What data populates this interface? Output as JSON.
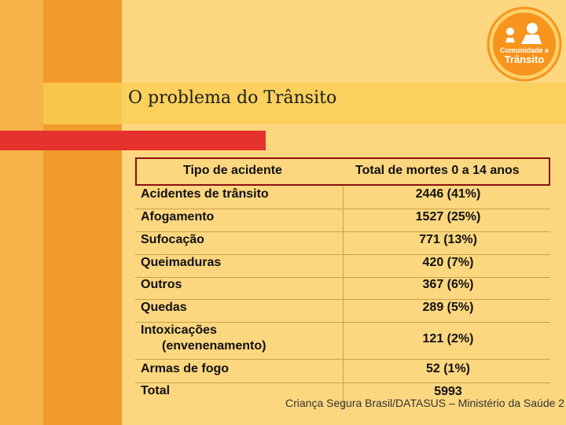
{
  "slide": {
    "title": "O problema do Trânsito",
    "logo_text_top": "Comunidade e",
    "logo_text_bottom": "Trânsito"
  },
  "table": {
    "headers": [
      "Tipo de acidente",
      "Total de mortes 0 a 14 anos"
    ],
    "rows": [
      {
        "label": "Acidentes de trânsito",
        "value": "2446 (41%)"
      },
      {
        "label": "Afogamento",
        "value": "1527 (25%)"
      },
      {
        "label": "Sufocação",
        "value": "771 (13%)"
      },
      {
        "label": "Queimaduras",
        "value": "420 (7%)"
      },
      {
        "label": "Outros",
        "value": "367 (6%)"
      },
      {
        "label": "Quedas",
        "value": "289 (5%)"
      },
      {
        "label": "Intoxicações",
        "label2": "(envenenamento)",
        "value": "121 (2%)"
      },
      {
        "label": "Armas de fogo",
        "value": "52 (1%)"
      },
      {
        "label": "Total",
        "value": "5993"
      }
    ]
  },
  "source": "Criança Segura Brasil/DATASUS – Ministério da Saúde 2",
  "colors": {
    "background": "#fdd77f",
    "accent_orange": "#f39b2a",
    "accent_red": "#e5322c",
    "logo_orange": "#f7941d"
  }
}
